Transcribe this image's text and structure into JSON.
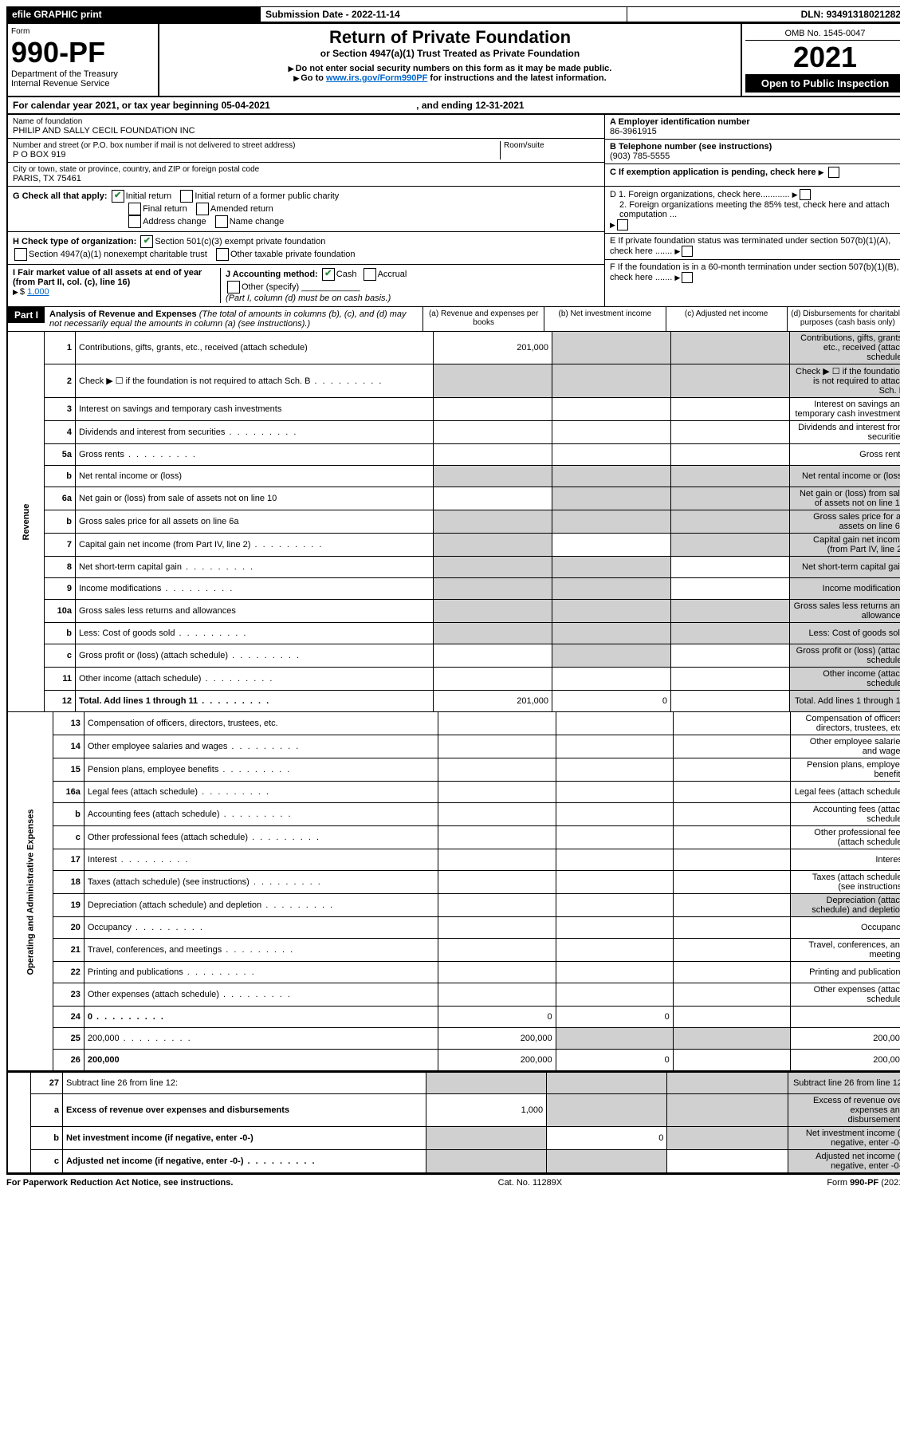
{
  "topbar": {
    "efile": "efile GRAPHIC print",
    "subdate_label": "Submission Date - ",
    "subdate": "2022-11-14",
    "dln_label": "DLN: ",
    "dln": "93491318021282"
  },
  "header": {
    "form_word": "Form",
    "form_no": "990-PF",
    "dept": "Department of the Treasury",
    "irs": "Internal Revenue Service",
    "title": "Return of Private Foundation",
    "subtitle": "or Section 4947(a)(1) Trust Treated as Private Foundation",
    "warn": "Do not enter social security numbers on this form as it may be made public.",
    "goto": "Go to ",
    "goto_link": "www.irs.gov/Form990PF",
    "goto_tail": " for instructions and the latest information.",
    "omb": "OMB No. 1545-0047",
    "year": "2021",
    "open": "Open to Public Inspection"
  },
  "calyear": {
    "pre": "For calendar year 2021, or tax year beginning ",
    "begin": "05-04-2021",
    "mid": " , and ending ",
    "end": "12-31-2021"
  },
  "entity": {
    "name_lbl": "Name of foundation",
    "name": "PHILIP AND SALLY CECIL FOUNDATION INC",
    "addr_lbl": "Number and street (or P.O. box number if mail is not delivered to street address)",
    "addr": "P O BOX 919",
    "room_lbl": "Room/suite",
    "city_lbl": "City or town, state or province, country, and ZIP or foreign postal code",
    "city": "PARIS, TX  75461",
    "ein_lbl": "A Employer identification number",
    "ein": "86-3961915",
    "phone_lbl": "B Telephone number (see instructions)",
    "phone": "(903) 785-5555",
    "c_lbl": "C If exemption application is pending, check here",
    "d1": "D 1. Foreign organizations, check here............",
    "d2": "2. Foreign organizations meeting the 85% test, check here and attach computation ...",
    "e": "E  If private foundation status was terminated under section 507(b)(1)(A), check here .......",
    "f": "F  If the foundation is in a 60-month termination under section 507(b)(1)(B), check here .......",
    "g_lbl": "G Check all that apply:",
    "g_initial": "Initial return",
    "g_initial_former": "Initial return of a former public charity",
    "g_final": "Final return",
    "g_amended": "Amended return",
    "g_addr": "Address change",
    "g_name": "Name change",
    "h_lbl": "H Check type of organization:",
    "h_501c3": "Section 501(c)(3) exempt private foundation",
    "h_4947": "Section 4947(a)(1) nonexempt charitable trust",
    "h_other": "Other taxable private foundation",
    "i_lbl": "I Fair market value of all assets at end of year (from Part II, col. (c), line 16)",
    "i_val": "1,000",
    "j_lbl": "J Accounting method:",
    "j_cash": "Cash",
    "j_accrual": "Accrual",
    "j_other": "Other (specify)",
    "j_note": "(Part I, column (d) must be on cash basis.)"
  },
  "part1": {
    "badge": "Part I",
    "title": "Analysis of Revenue and Expenses",
    "note": "(The total of amounts in columns (b), (c), and (d) may not necessarily equal the amounts in column (a) (see instructions).)",
    "cols": {
      "a": "(a)   Revenue and expenses per books",
      "b": "(b)   Net investment income",
      "c": "(c)   Adjusted net income",
      "d": "(d)   Disbursements for charitable purposes (cash basis only)"
    }
  },
  "side": {
    "rev": "Revenue",
    "opex": "Operating and Administrative Expenses"
  },
  "rows": [
    {
      "n": "1",
      "d": "Contributions, gifts, grants, etc., received (attach schedule)",
      "a": "201,000",
      "grey_bcd": true
    },
    {
      "n": "2",
      "d": "Check ▶ ☐ if the foundation is not required to attach Sch. B",
      "dots": true,
      "grey_all": true
    },
    {
      "n": "3",
      "d": "Interest on savings and temporary cash investments"
    },
    {
      "n": "4",
      "d": "Dividends and interest from securities",
      "dots": true
    },
    {
      "n": "5a",
      "d": "Gross rents",
      "dots": true
    },
    {
      "n": "b",
      "d": "Net rental income or (loss)",
      "inline": true,
      "grey_all": true
    },
    {
      "n": "6a",
      "d": "Net gain or (loss) from sale of assets not on line 10",
      "grey_bcd": true
    },
    {
      "n": "b",
      "d": "Gross sales price for all assets on line 6a",
      "inline": true,
      "grey_all": true
    },
    {
      "n": "7",
      "d": "Capital gain net income (from Part IV, line 2)",
      "dots": true,
      "grey_acd": true
    },
    {
      "n": "8",
      "d": "Net short-term capital gain",
      "dots": true,
      "grey_abd": true
    },
    {
      "n": "9",
      "d": "Income modifications",
      "dots": true,
      "grey_abd": true
    },
    {
      "n": "10a",
      "d": "Gross sales less returns and allowances",
      "inline": true,
      "grey_all": true
    },
    {
      "n": "b",
      "d": "Less: Cost of goods sold",
      "dots": true,
      "inline": true,
      "grey_all": true
    },
    {
      "n": "c",
      "d": "Gross profit or (loss) (attach schedule)",
      "dots": true,
      "grey_bd": true
    },
    {
      "n": "11",
      "d": "Other income (attach schedule)",
      "dots": true,
      "grey_d": true
    },
    {
      "n": "12",
      "d": "Total. Add lines 1 through 11",
      "dots": true,
      "bold": true,
      "a": "201,000",
      "b": "0",
      "grey_d": true
    }
  ],
  "oprows": [
    {
      "n": "13",
      "d": "Compensation of officers, directors, trustees, etc."
    },
    {
      "n": "14",
      "d": "Other employee salaries and wages",
      "dots": true
    },
    {
      "n": "15",
      "d": "Pension plans, employee benefits",
      "dots": true
    },
    {
      "n": "16a",
      "d": "Legal fees (attach schedule)",
      "dots": true
    },
    {
      "n": "b",
      "d": "Accounting fees (attach schedule)",
      "dots": true
    },
    {
      "n": "c",
      "d": "Other professional fees (attach schedule)",
      "dots": true
    },
    {
      "n": "17",
      "d": "Interest",
      "dots": true
    },
    {
      "n": "18",
      "d": "Taxes (attach schedule) (see instructions)",
      "dots": true
    },
    {
      "n": "19",
      "d": "Depreciation (attach schedule) and depletion",
      "dots": true,
      "grey_d": true
    },
    {
      "n": "20",
      "d": "Occupancy",
      "dots": true
    },
    {
      "n": "21",
      "d": "Travel, conferences, and meetings",
      "dots": true
    },
    {
      "n": "22",
      "d": "Printing and publications",
      "dots": true
    },
    {
      "n": "23",
      "d": "Other expenses (attach schedule)",
      "dots": true
    },
    {
      "n": "24",
      "d": "0",
      "dots": true,
      "bold": true,
      "a": "0",
      "b": "0"
    },
    {
      "n": "25",
      "d": "200,000",
      "dots": true,
      "a": "200,000",
      "grey_bc": true
    },
    {
      "n": "26",
      "d": "200,000",
      "bold": true,
      "a": "200,000",
      "b": "0"
    }
  ],
  "endrows": [
    {
      "n": "27",
      "d": "Subtract line 26 from line 12:",
      "grey_all": true
    },
    {
      "n": "a",
      "d": "Excess of revenue over expenses and disbursements",
      "bold": true,
      "a": "1,000",
      "grey_bcd": true
    },
    {
      "n": "b",
      "d": "Net investment income (if negative, enter -0-)",
      "bold": true,
      "grey_a": true,
      "b": "0",
      "grey_cd": true
    },
    {
      "n": "c",
      "d": "Adjusted net income (if negative, enter -0-)",
      "bold": true,
      "dots": true,
      "grey_ab": true,
      "grey_d": true
    }
  ],
  "footer": {
    "left": "For Paperwork Reduction Act Notice, see instructions.",
    "mid": "Cat. No. 11289X",
    "right": "Form 990-PF (2021)"
  }
}
